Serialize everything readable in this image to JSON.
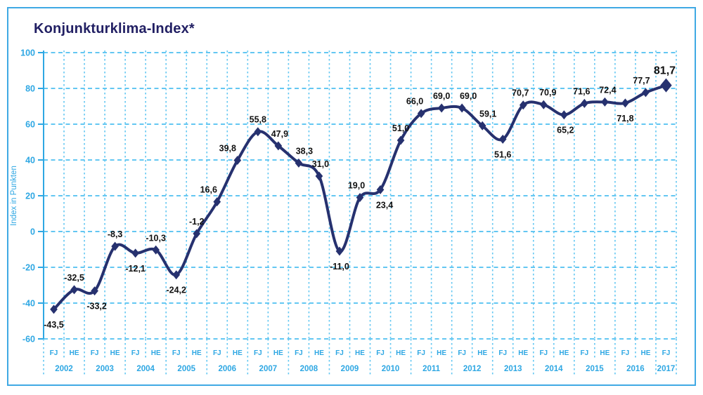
{
  "colors": {
    "frame_border": "#3fa9e4",
    "grid": "#63c7f2",
    "axis": "#2ea7e3",
    "axis_text": "#2ea7e3",
    "series": "#26316f",
    "data_label": "#111111",
    "title": "#211f63"
  },
  "chart_data": {
    "type": "line",
    "title": "Konjunkturklima-Index*",
    "ylabel": "Index in Punkten",
    "ylim": [
      -60,
      100
    ],
    "yticks": [
      100,
      80,
      60,
      40,
      20,
      0,
      -20,
      -40,
      -60
    ],
    "grid": true,
    "legend": "none",
    "x_period_labels": [
      "FJ",
      "HE"
    ],
    "points": [
      {
        "year": "2002",
        "period": "FJ",
        "value": -43.5,
        "label": "-43,5",
        "pos": "below"
      },
      {
        "year": "2002",
        "period": "HE",
        "value": -32.5,
        "label": "-32,5",
        "pos": "above"
      },
      {
        "year": "2003",
        "period": "FJ",
        "value": -33.2,
        "label": "-33,2",
        "pos": "below",
        "dx": 3
      },
      {
        "year": "2003",
        "period": "HE",
        "value": -8.3,
        "label": "-8,3",
        "pos": "above"
      },
      {
        "year": "2004",
        "period": "FJ",
        "value": -12.1,
        "label": "-12,1",
        "pos": "below"
      },
      {
        "year": "2004",
        "period": "HE",
        "value": -10.3,
        "label": "-10,3",
        "pos": "above"
      },
      {
        "year": "2005",
        "period": "FJ",
        "value": -24.2,
        "label": "-24,2",
        "pos": "below"
      },
      {
        "year": "2005",
        "period": "HE",
        "value": -1.2,
        "label": "-1,2",
        "pos": "above"
      },
      {
        "year": "2006",
        "period": "FJ",
        "value": 16.6,
        "label": "16,6",
        "pos": "above",
        "dx": -12
      },
      {
        "year": "2006",
        "period": "HE",
        "value": 39.8,
        "label": "39,8",
        "pos": "above",
        "dx": -14
      },
      {
        "year": "2007",
        "period": "FJ",
        "value": 55.8,
        "label": "55,8",
        "pos": "above"
      },
      {
        "year": "2007",
        "period": "HE",
        "value": 47.9,
        "label": "47,9",
        "pos": "above",
        "dx": 2
      },
      {
        "year": "2008",
        "period": "FJ",
        "value": 38.3,
        "label": "38,3",
        "pos": "above",
        "dx": 8
      },
      {
        "year": "2008",
        "period": "HE",
        "value": 31.0,
        "label": "31,0",
        "pos": "above",
        "dx": 2
      },
      {
        "year": "2009",
        "period": "FJ",
        "value": -11.0,
        "label": "-11,0",
        "pos": "below"
      },
      {
        "year": "2009",
        "period": "HE",
        "value": 19.0,
        "label": "19,0",
        "pos": "above",
        "dx": -5
      },
      {
        "year": "2010",
        "period": "FJ",
        "value": 23.4,
        "label": "23,4",
        "pos": "below",
        "dx": 6
      },
      {
        "year": "2010",
        "period": "HE",
        "value": 51.0,
        "label": "51,0",
        "pos": "above"
      },
      {
        "year": "2011",
        "period": "FJ",
        "value": 66.0,
        "label": "66,0",
        "pos": "above",
        "dx": -9
      },
      {
        "year": "2011",
        "period": "HE",
        "value": 69.0,
        "label": "69,0",
        "pos": "above"
      },
      {
        "year": "2012",
        "period": "FJ",
        "value": 69.0,
        "label": "69,0",
        "pos": "above",
        "dx": 9
      },
      {
        "year": "2012",
        "period": "HE",
        "value": 59.1,
        "label": "59,1",
        "pos": "above",
        "dx": 8
      },
      {
        "year": "2013",
        "period": "FJ",
        "value": 51.6,
        "label": "51,6",
        "pos": "below"
      },
      {
        "year": "2013",
        "period": "HE",
        "value": 70.7,
        "label": "70,7",
        "pos": "above",
        "dx": -4
      },
      {
        "year": "2014",
        "period": "FJ",
        "value": 70.9,
        "label": "70,9",
        "pos": "above",
        "dx": 6
      },
      {
        "year": "2014",
        "period": "HE",
        "value": 65.2,
        "label": "65,2",
        "pos": "below",
        "dx": 2
      },
      {
        "year": "2015",
        "period": "FJ",
        "value": 71.6,
        "label": "71,6",
        "pos": "above",
        "dx": -4
      },
      {
        "year": "2015",
        "period": "HE",
        "value": 72.4,
        "label": "72,4",
        "pos": "above",
        "dx": 4
      },
      {
        "year": "2016",
        "period": "FJ",
        "value": 71.8,
        "label": "71,8",
        "pos": "below"
      },
      {
        "year": "2016",
        "period": "HE",
        "value": 77.7,
        "label": "77,7",
        "pos": "above",
        "dx": -6
      },
      {
        "year": "2017",
        "period": "FJ",
        "value": 81.7,
        "label": "81,7",
        "pos": "above",
        "dx": -2,
        "emph": true
      }
    ]
  }
}
